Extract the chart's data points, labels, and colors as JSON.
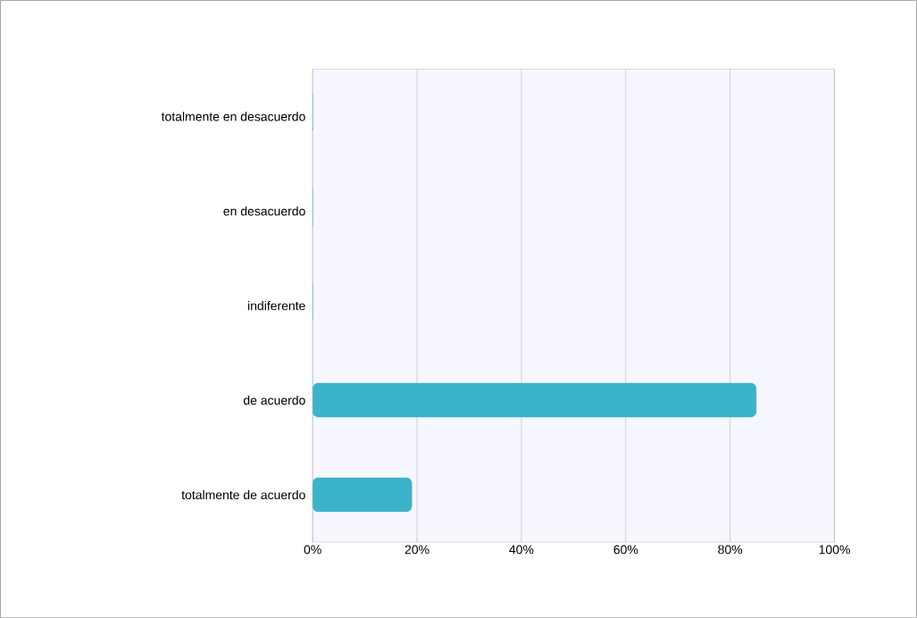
{
  "chart_data": {
    "type": "bar",
    "orientation": "horizontal",
    "categories": [
      "totalmente en desacuerdo",
      "en desacuerdo",
      "indiferente",
      "de acuerdo",
      "totalmente de acuerdo"
    ],
    "values": [
      0,
      0,
      0,
      85,
      19
    ],
    "color": "#3bb3c8",
    "xlim": [
      0,
      100
    ],
    "xticks": [
      {
        "value": 0,
        "label": "0%"
      },
      {
        "value": 20,
        "label": "20%"
      },
      {
        "value": 40,
        "label": "40%"
      },
      {
        "value": 60,
        "label": "60%"
      },
      {
        "value": 80,
        "label": "80%"
      },
      {
        "value": 100,
        "label": "100%"
      }
    ],
    "grid": "x"
  }
}
